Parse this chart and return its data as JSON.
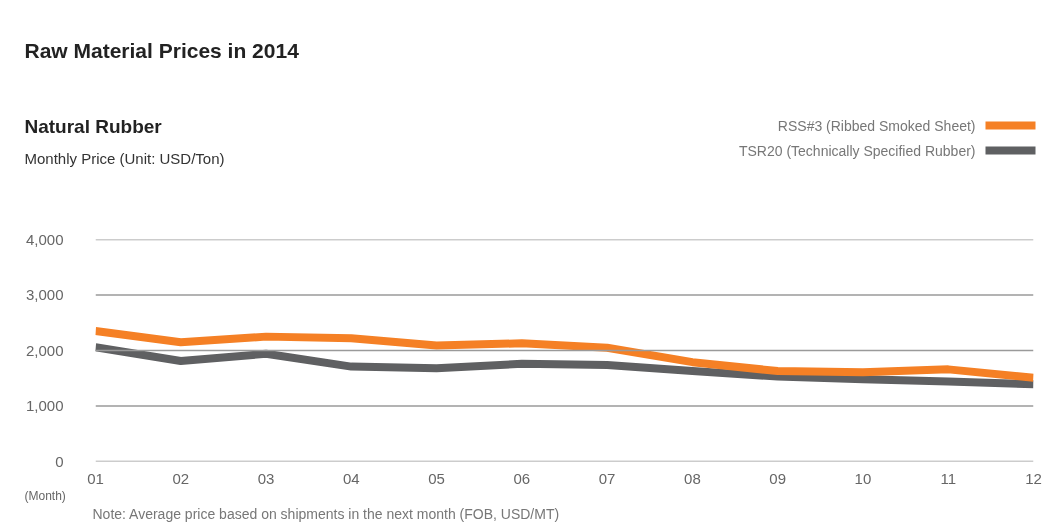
{
  "chart_data": {
    "type": "line",
    "title": "Raw Material Prices in 2014",
    "subtitle": "Natural Rubber",
    "ylabel": "Monthly Price (Unit: USD/Ton)",
    "xlabel": "(Month)",
    "annotations": [
      "Note: Average price based on shipments in the next month (FOB, USD/MT)"
    ],
    "categories": [
      "01",
      "02",
      "03",
      "04",
      "05",
      "06",
      "07",
      "08",
      "09",
      "10",
      "11",
      "12"
    ],
    "series": [
      {
        "name": "RSS#3 (Ribbed Smoked Sheet)",
        "color": "#f58025",
        "values": [
          2350,
          2150,
          2250,
          2220,
          2090,
          2130,
          2050,
          1790,
          1630,
          1610,
          1660,
          1510
        ]
      },
      {
        "name": "TSR20 (Technically Specified Rubber)",
        "color": "#5f6062",
        "values": [
          2060,
          1810,
          1940,
          1710,
          1680,
          1760,
          1740,
          1630,
          1530,
          1480,
          1440,
          1390
        ]
      }
    ],
    "ylim": [
      0,
      4000
    ],
    "yticks": [
      0,
      {
        "value": 1000,
        "label": "1,000"
      },
      {
        "value": 2000,
        "label": "2,000"
      },
      {
        "value": 3000,
        "label": "3,000"
      },
      {
        "value": 4000,
        "label": "4,000"
      }
    ],
    "grid": "y",
    "legend": "top right",
    "line_style": "solid"
  }
}
